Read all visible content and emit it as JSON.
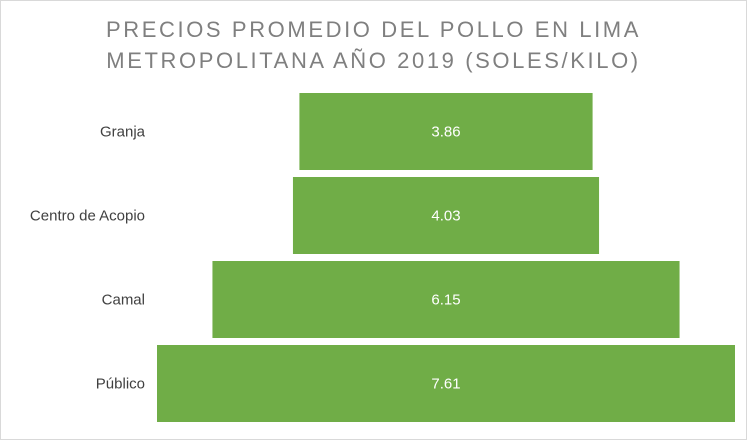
{
  "chart_data": {
    "type": "bar",
    "orientation": "horizontal-funnel",
    "title_lines": [
      "PRECIOS PROMEDIO DEL POLLO EN LIMA",
      "METROPOLITANA AÑO 2019 (SOLES/KILO)"
    ],
    "categories": [
      "Granja",
      "Centro de Acopio",
      "Camal",
      "Público"
    ],
    "values": [
      3.86,
      4.03,
      6.15,
      7.61
    ],
    "value_labels": [
      "3.86",
      "4.03",
      "6.15",
      "7.61"
    ],
    "bar_color": "#70ad47",
    "grid": false,
    "legend": "none"
  }
}
